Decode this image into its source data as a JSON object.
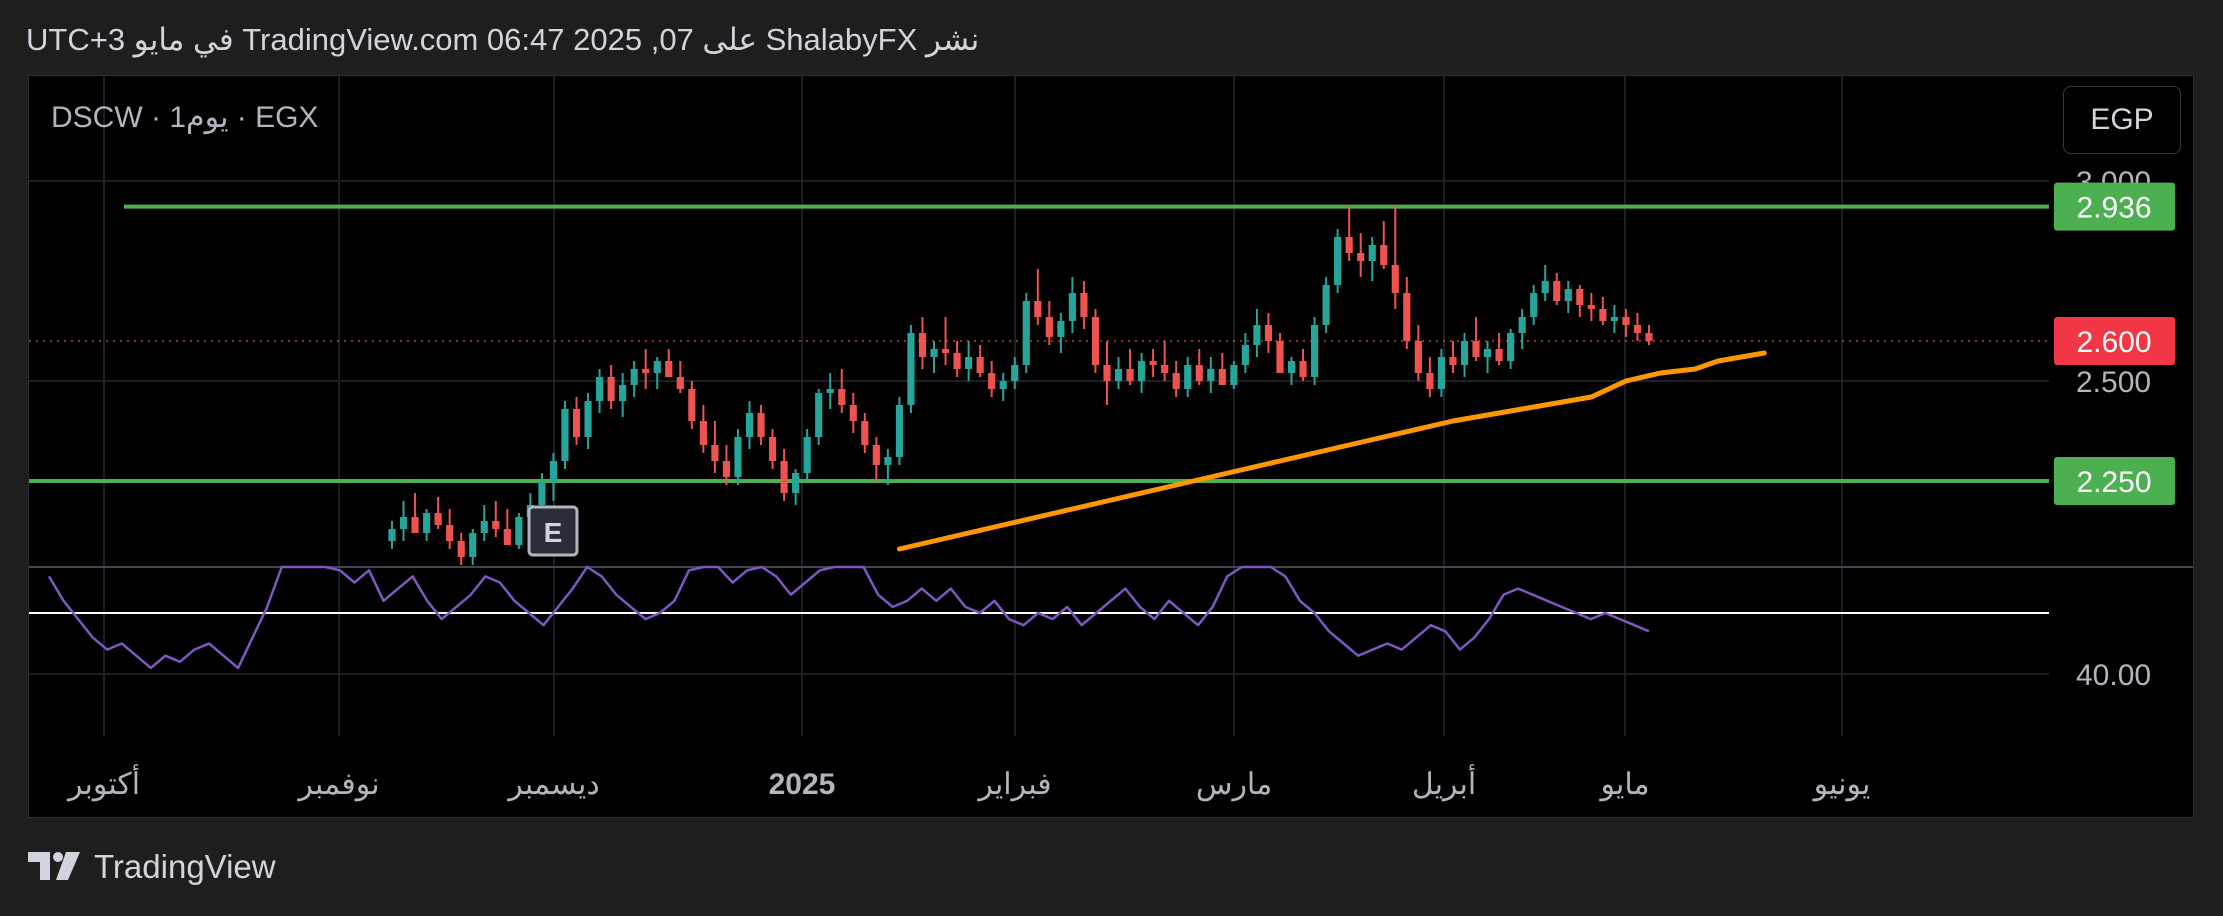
{
  "header": {
    "text": "نشر ShalabyFX على TradingView.com 06:47 2025 ,07 في مايو UTC+3"
  },
  "symbol": {
    "label": "DSCW · 1يوم · EGX"
  },
  "currency_button": {
    "label": "EGP"
  },
  "footer": {
    "brand": "TradingView"
  },
  "colors": {
    "up": "#26a69a",
    "down": "#ef5350",
    "level_line": "#4caf50",
    "ma_line": "#ff9800",
    "rsi_line": "#7e57c2",
    "last_price_badge": "#f23645",
    "level_badge": "#4caf50"
  },
  "chart_data": {
    "type": "candlestick",
    "price_axis": {
      "ticks": [
        {
          "value": 3.0,
          "label": "3.000"
        },
        {
          "value": 2.5,
          "label": "2.500"
        }
      ],
      "range": [
        2.05,
        3.1
      ]
    },
    "price_badges": [
      {
        "value": 2.936,
        "label": "2.936",
        "kind": "level"
      },
      {
        "value": 2.6,
        "label": "2.600",
        "kind": "last"
      },
      {
        "value": 2.25,
        "label": "2.250",
        "kind": "level"
      }
    ],
    "horizontal_levels": [
      2.936,
      2.25
    ],
    "last_price": 2.6,
    "time_axis": {
      "labels": [
        {
          "label": "أكتوبر",
          "bold": false
        },
        {
          "label": "نوفمبر",
          "bold": false
        },
        {
          "label": "ديسمبر",
          "bold": false
        },
        {
          "label": "2025",
          "bold": true
        },
        {
          "label": "فبراير",
          "bold": false
        },
        {
          "label": "مارس",
          "bold": false
        },
        {
          "label": "أبريل",
          "bold": false
        },
        {
          "label": "مايو",
          "bold": false
        },
        {
          "label": "يونيو",
          "bold": false
        }
      ]
    },
    "event_marker": {
      "label": "E"
    },
    "candles": [
      [
        2.1,
        2.15,
        2.08,
        2.13
      ],
      [
        2.13,
        2.2,
        2.1,
        2.16
      ],
      [
        2.16,
        2.22,
        2.12,
        2.12
      ],
      [
        2.12,
        2.18,
        2.1,
        2.17
      ],
      [
        2.17,
        2.21,
        2.13,
        2.14
      ],
      [
        2.14,
        2.18,
        2.08,
        2.1
      ],
      [
        2.1,
        2.12,
        2.04,
        2.06
      ],
      [
        2.06,
        2.13,
        2.04,
        2.12
      ],
      [
        2.12,
        2.19,
        2.1,
        2.15
      ],
      [
        2.15,
        2.2,
        2.11,
        2.13
      ],
      [
        2.13,
        2.18,
        2.09,
        2.09
      ],
      [
        2.09,
        2.17,
        2.08,
        2.16
      ],
      [
        2.16,
        2.22,
        2.14,
        2.19
      ],
      [
        2.19,
        2.27,
        2.17,
        2.25
      ],
      [
        2.25,
        2.32,
        2.2,
        2.3
      ],
      [
        2.3,
        2.45,
        2.28,
        2.43
      ],
      [
        2.43,
        2.46,
        2.34,
        2.36
      ],
      [
        2.36,
        2.47,
        2.33,
        2.45
      ],
      [
        2.45,
        2.53,
        2.42,
        2.51
      ],
      [
        2.51,
        2.54,
        2.43,
        2.45
      ],
      [
        2.45,
        2.52,
        2.41,
        2.49
      ],
      [
        2.49,
        2.55,
        2.46,
        2.53
      ],
      [
        2.53,
        2.58,
        2.48,
        2.52
      ],
      [
        2.52,
        2.56,
        2.48,
        2.55
      ],
      [
        2.55,
        2.58,
        2.51,
        2.51
      ],
      [
        2.51,
        2.55,
        2.47,
        2.48
      ],
      [
        2.48,
        2.5,
        2.38,
        2.4
      ],
      [
        2.4,
        2.44,
        2.32,
        2.34
      ],
      [
        2.34,
        2.4,
        2.27,
        2.3
      ],
      [
        2.3,
        2.34,
        2.24,
        2.26
      ],
      [
        2.26,
        2.38,
        2.24,
        2.36
      ],
      [
        2.36,
        2.45,
        2.33,
        2.42
      ],
      [
        2.42,
        2.44,
        2.34,
        2.36
      ],
      [
        2.36,
        2.38,
        2.28,
        2.3
      ],
      [
        2.3,
        2.33,
        2.2,
        2.22
      ],
      [
        2.22,
        2.28,
        2.19,
        2.27
      ],
      [
        2.27,
        2.38,
        2.25,
        2.36
      ],
      [
        2.36,
        2.48,
        2.34,
        2.47
      ],
      [
        2.47,
        2.52,
        2.43,
        2.48
      ],
      [
        2.48,
        2.53,
        2.42,
        2.44
      ],
      [
        2.44,
        2.47,
        2.37,
        2.4
      ],
      [
        2.4,
        2.42,
        2.32,
        2.34
      ],
      [
        2.34,
        2.36,
        2.25,
        2.29
      ],
      [
        2.29,
        2.33,
        2.24,
        2.31
      ],
      [
        2.31,
        2.46,
        2.29,
        2.44
      ],
      [
        2.44,
        2.64,
        2.42,
        2.62
      ],
      [
        2.62,
        2.66,
        2.53,
        2.56
      ],
      [
        2.56,
        2.6,
        2.52,
        2.58
      ],
      [
        2.58,
        2.66,
        2.54,
        2.57
      ],
      [
        2.57,
        2.6,
        2.51,
        2.53
      ],
      [
        2.53,
        2.6,
        2.5,
        2.56
      ],
      [
        2.56,
        2.59,
        2.51,
        2.52
      ],
      [
        2.52,
        2.55,
        2.46,
        2.48
      ],
      [
        2.48,
        2.52,
        2.45,
        2.5
      ],
      [
        2.5,
        2.56,
        2.48,
        2.54
      ],
      [
        2.54,
        2.72,
        2.52,
        2.7
      ],
      [
        2.7,
        2.78,
        2.64,
        2.66
      ],
      [
        2.66,
        2.7,
        2.59,
        2.61
      ],
      [
        2.61,
        2.67,
        2.57,
        2.65
      ],
      [
        2.65,
        2.76,
        2.62,
        2.72
      ],
      [
        2.72,
        2.75,
        2.63,
        2.66
      ],
      [
        2.66,
        2.68,
        2.52,
        2.54
      ],
      [
        2.54,
        2.6,
        2.44,
        2.5
      ],
      [
        2.5,
        2.56,
        2.48,
        2.53
      ],
      [
        2.53,
        2.58,
        2.49,
        2.5
      ],
      [
        2.5,
        2.57,
        2.47,
        2.55
      ],
      [
        2.55,
        2.58,
        2.51,
        2.54
      ],
      [
        2.54,
        2.6,
        2.5,
        2.52
      ],
      [
        2.52,
        2.55,
        2.46,
        2.48
      ],
      [
        2.48,
        2.56,
        2.46,
        2.54
      ],
      [
        2.54,
        2.58,
        2.49,
        2.5
      ],
      [
        2.5,
        2.56,
        2.47,
        2.53
      ],
      [
        2.53,
        2.57,
        2.49,
        2.49
      ],
      [
        2.49,
        2.55,
        2.48,
        2.54
      ],
      [
        2.54,
        2.62,
        2.52,
        2.59
      ],
      [
        2.59,
        2.68,
        2.56,
        2.64
      ],
      [
        2.64,
        2.67,
        2.57,
        2.6
      ],
      [
        2.6,
        2.62,
        2.52,
        2.52
      ],
      [
        2.52,
        2.56,
        2.49,
        2.55
      ],
      [
        2.55,
        2.58,
        2.5,
        2.51
      ],
      [
        2.51,
        2.66,
        2.49,
        2.64
      ],
      [
        2.64,
        2.76,
        2.62,
        2.74
      ],
      [
        2.74,
        2.88,
        2.72,
        2.86
      ],
      [
        2.86,
        2.94,
        2.8,
        2.82
      ],
      [
        2.82,
        2.87,
        2.76,
        2.8
      ],
      [
        2.8,
        2.86,
        2.75,
        2.84
      ],
      [
        2.84,
        2.9,
        2.78,
        2.79
      ],
      [
        2.79,
        2.94,
        2.68,
        2.72
      ],
      [
        2.72,
        2.76,
        2.58,
        2.6
      ],
      [
        2.6,
        2.64,
        2.5,
        2.52
      ],
      [
        2.52,
        2.56,
        2.46,
        2.48
      ],
      [
        2.48,
        2.58,
        2.46,
        2.56
      ],
      [
        2.56,
        2.6,
        2.52,
        2.54
      ],
      [
        2.54,
        2.62,
        2.51,
        2.6
      ],
      [
        2.6,
        2.66,
        2.55,
        2.56
      ],
      [
        2.56,
        2.6,
        2.52,
        2.58
      ],
      [
        2.58,
        2.62,
        2.54,
        2.55
      ],
      [
        2.55,
        2.63,
        2.53,
        2.62
      ],
      [
        2.62,
        2.68,
        2.58,
        2.66
      ],
      [
        2.66,
        2.74,
        2.64,
        2.72
      ],
      [
        2.72,
        2.79,
        2.7,
        2.75
      ],
      [
        2.75,
        2.77,
        2.69,
        2.7
      ],
      [
        2.7,
        2.75,
        2.67,
        2.73
      ],
      [
        2.73,
        2.74,
        2.66,
        2.69
      ],
      [
        2.69,
        2.72,
        2.65,
        2.68
      ],
      [
        2.68,
        2.71,
        2.64,
        2.65
      ],
      [
        2.65,
        2.69,
        2.62,
        2.66
      ],
      [
        2.66,
        2.68,
        2.61,
        2.64
      ],
      [
        2.64,
        2.67,
        2.6,
        2.62
      ],
      [
        2.62,
        2.64,
        2.59,
        2.6
      ]
    ],
    "moving_average": {
      "values": [
        [
          44,
          2.08
        ],
        [
          50,
          2.12
        ],
        [
          56,
          2.16
        ],
        [
          62,
          2.2
        ],
        [
          68,
          2.24
        ],
        [
          74,
          2.28
        ],
        [
          80,
          2.32
        ],
        [
          86,
          2.36
        ],
        [
          92,
          2.4
        ],
        [
          98,
          2.43
        ],
        [
          104,
          2.46
        ],
        [
          107,
          2.5
        ],
        [
          110,
          2.52
        ],
        [
          113,
          2.53
        ],
        [
          115,
          2.55
        ],
        [
          117,
          2.56
        ],
        [
          119,
          2.57
        ]
      ]
    },
    "rsi": {
      "tick": {
        "value": 40,
        "label": "40.00"
      },
      "reference_level": 50,
      "values": [
        56,
        52,
        49,
        46,
        44,
        45,
        43,
        41,
        43,
        42,
        44,
        45,
        43,
        41,
        46,
        51,
        58,
        64,
        61,
        59,
        57,
        55,
        57,
        52,
        54,
        56,
        52,
        49,
        51,
        53,
        56,
        55,
        52,
        50,
        48,
        51,
        54,
        58,
        56,
        53,
        51,
        49,
        50,
        52,
        57,
        62,
        59,
        55,
        57,
        59,
        56,
        53,
        55,
        57,
        60,
        64,
        58,
        53,
        51,
        52,
        54,
        52,
        54,
        51,
        50,
        52,
        49,
        48,
        50,
        49,
        51,
        48,
        50,
        52,
        54,
        51,
        49,
        52,
        50,
        48,
        51,
        56,
        63,
        61,
        58,
        56,
        52,
        50,
        47,
        45,
        43,
        44,
        45,
        44,
        46,
        48,
        47,
        44,
        46,
        49,
        53,
        54,
        53,
        52,
        51,
        50,
        49,
        50,
        49,
        48,
        47
      ]
    }
  }
}
